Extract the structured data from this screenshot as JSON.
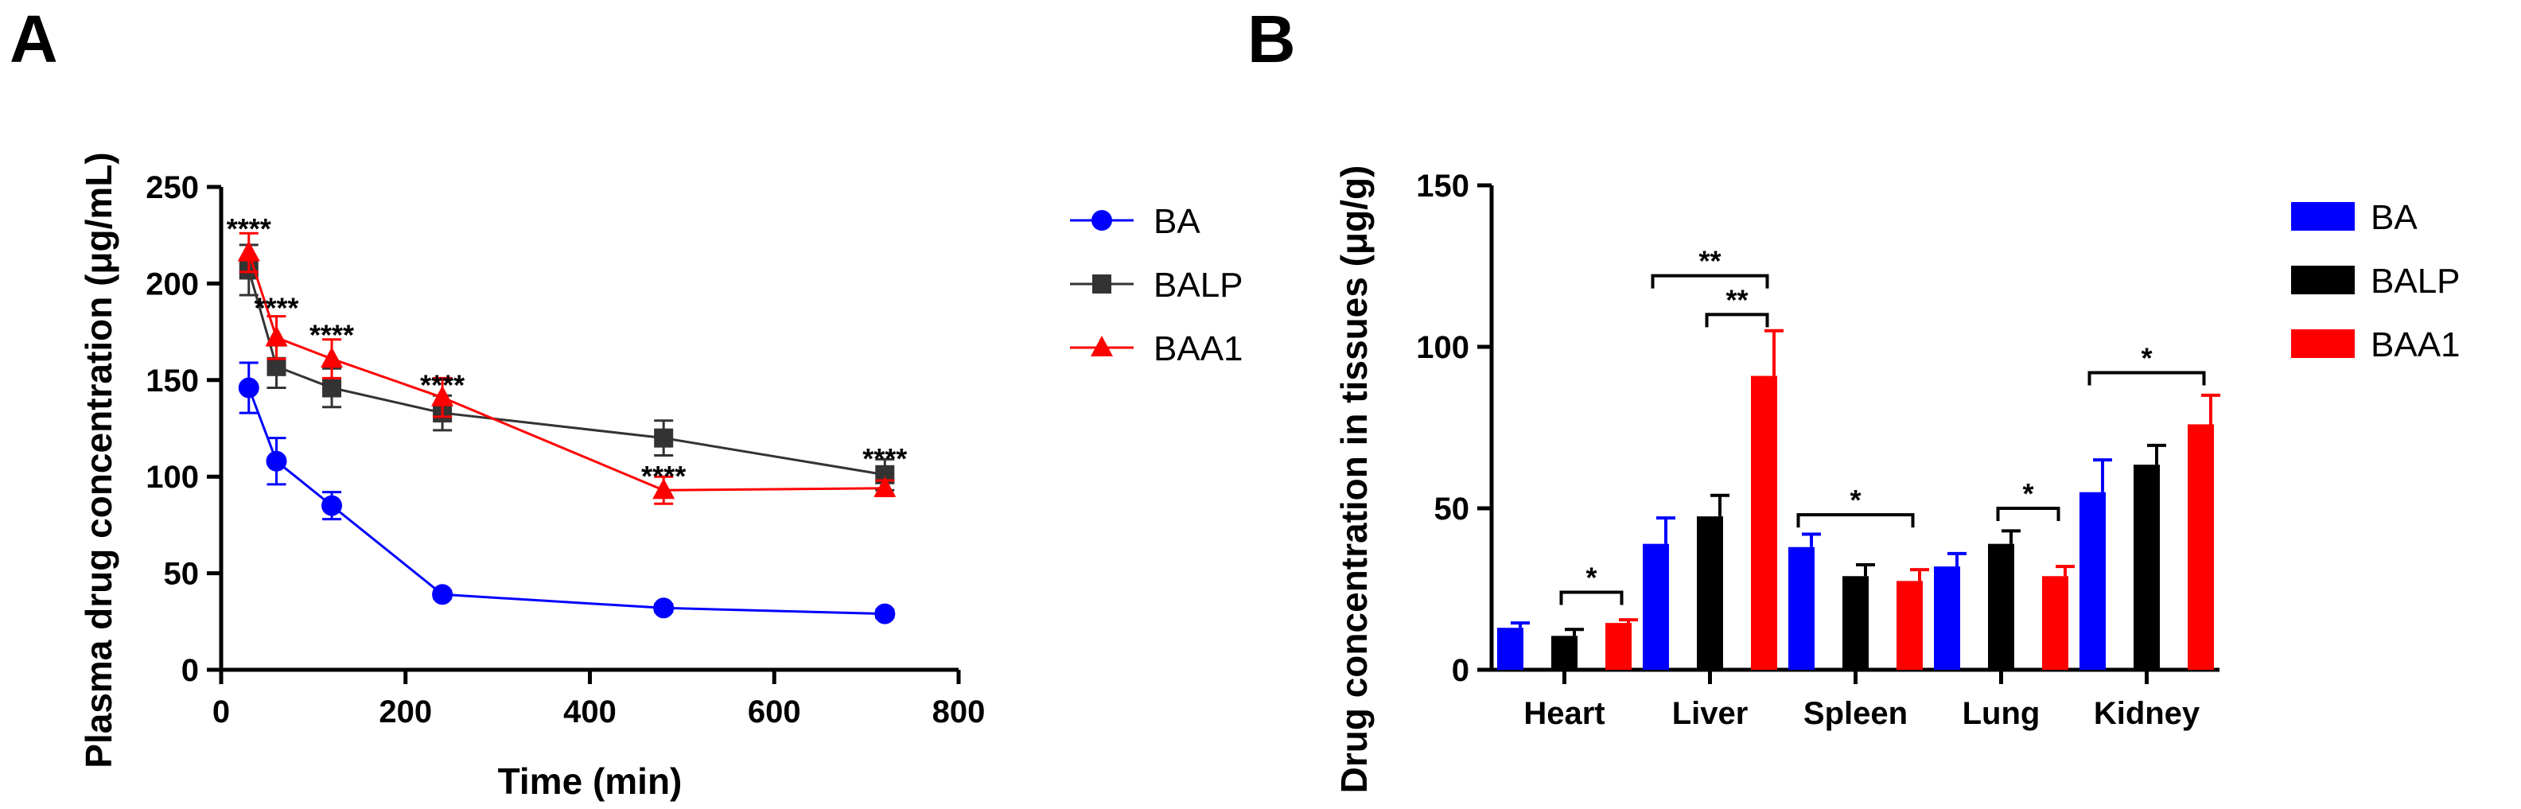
{
  "chart_data": [
    {
      "type": "line",
      "panel": "A",
      "xlabel": "Time (min)",
      "ylabel": "Plasma drug concentration (μg/mL)",
      "xlim": [
        0,
        800
      ],
      "ylim": [
        0,
        250
      ],
      "xticks": [
        "0",
        "200",
        "400",
        "600",
        "800"
      ],
      "yticks": [
        "0",
        "50",
        "100",
        "150",
        "200",
        "250"
      ],
      "x": [
        30,
        60,
        120,
        240,
        480,
        720
      ],
      "series": [
        {
          "name": "BA",
          "color": "#0000ff",
          "marker": "circle",
          "values": [
            146,
            108,
            85,
            39,
            32,
            29
          ],
          "errors": [
            13,
            12,
            7,
            2,
            2,
            2
          ]
        },
        {
          "name": "BALP",
          "color": "#333333",
          "marker": "square",
          "values": [
            207,
            157,
            146,
            133,
            120,
            101
          ],
          "errors": [
            13,
            11,
            10,
            9,
            9,
            8
          ]
        },
        {
          "name": "BAA1",
          "color": "#ff0000",
          "marker": "triangle",
          "values": [
            216,
            172,
            161,
            141,
            93,
            94
          ],
          "errors": [
            10,
            11,
            10,
            10,
            7,
            4
          ]
        }
      ],
      "annotations": [
        {
          "x": 30,
          "y": 229,
          "text": "****"
        },
        {
          "x": 60,
          "y": 188,
          "text": "****"
        },
        {
          "x": 120,
          "y": 174,
          "text": "****"
        },
        {
          "x": 240,
          "y": 148,
          "text": "****"
        },
        {
          "x": 480,
          "y": 101,
          "text": "****"
        },
        {
          "x": 720,
          "y": 110,
          "text": "****"
        }
      ],
      "legend": "right"
    },
    {
      "type": "bar",
      "panel": "B",
      "ylabel": "Drug concentration in tissues (μg/g)",
      "categories": [
        "Heart",
        "Liver",
        "Spleen",
        "Lung",
        "Kidney"
      ],
      "ylim": [
        0,
        150
      ],
      "yticks": [
        "0",
        "50",
        "100",
        "150"
      ],
      "series": [
        {
          "name": "BA",
          "color": "#0000ff",
          "values": [
            13,
            39,
            38,
            32,
            55
          ],
          "errors": [
            1.5,
            8,
            4,
            4,
            10
          ]
        },
        {
          "name": "BALP",
          "color": "#000000",
          "values": [
            10.5,
            47.5,
            29,
            39,
            63.5
          ],
          "errors": [
            2,
            6.5,
            3.5,
            4,
            6
          ]
        },
        {
          "name": "BAA1",
          "color": "#ff0000",
          "values": [
            14.5,
            91,
            27.5,
            29,
            76
          ],
          "errors": [
            1,
            14,
            3.5,
            3,
            9
          ]
        }
      ],
      "significance": [
        {
          "category": 0,
          "from": 1,
          "to": 2,
          "y": 24,
          "text": "*"
        },
        {
          "category": 1,
          "from": 0,
          "to": 2,
          "y": 122,
          "text": "**"
        },
        {
          "category": 1,
          "from": 1,
          "to": 2,
          "y": 110,
          "text": "**"
        },
        {
          "category": 2,
          "from": 0,
          "to": 2,
          "y": 48,
          "text": "*"
        },
        {
          "category": 3,
          "from": 1,
          "to": 2,
          "y": 50,
          "text": "*"
        },
        {
          "category": 4,
          "from": 0,
          "to": 2,
          "y": 92,
          "text": "*"
        }
      ],
      "legend": "right"
    }
  ]
}
